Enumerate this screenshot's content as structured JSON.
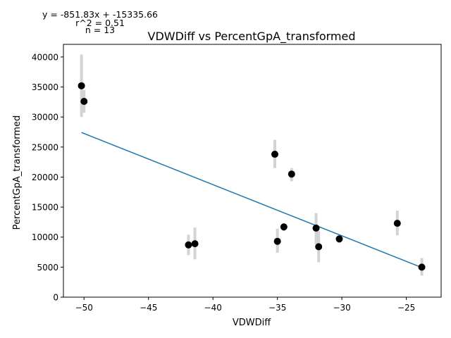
{
  "chart_data": {
    "type": "scatter",
    "title": "VDWDiff vs PercentGpA_transformed",
    "xlabel": "VDWDiff",
    "ylabel": "PercentGpA_transformed",
    "xlim": [
      -51.6,
      -22.3
    ],
    "ylim": [
      0,
      42100
    ],
    "xticks": [
      -50,
      -45,
      -40,
      -35,
      -30,
      -25
    ],
    "xtick_labels": [
      "−50",
      "−45",
      "−40",
      "−35",
      "−30",
      "−25"
    ],
    "yticks": [
      0,
      5000,
      10000,
      15000,
      20000,
      25000,
      30000,
      35000,
      40000
    ],
    "ytick_labels": [
      "0",
      "5000",
      "10000",
      "15000",
      "20000",
      "25000",
      "30000",
      "35000",
      "40000"
    ],
    "annotations": [
      "y = -851.83x + -15335.66",
      "r^2 = 0.51",
      "n = 13"
    ],
    "fit_line": {
      "slope": -851.83,
      "intercept": -15335.66,
      "x_range": [
        -50.2,
        -23.8
      ],
      "color": "#1f77b4"
    },
    "points": [
      {
        "x": -50.2,
        "y": 35200,
        "err_low": 30000,
        "err_high": 40400
      },
      {
        "x": -50.0,
        "y": 32600,
        "err_low": 30700,
        "err_high": 34500
      },
      {
        "x": -41.9,
        "y": 8700,
        "err_low": 7000,
        "err_high": 10400
      },
      {
        "x": -41.4,
        "y": 8900,
        "err_low": 6300,
        "err_high": 11600
      },
      {
        "x": -35.2,
        "y": 23800,
        "err_low": 21500,
        "err_high": 26200
      },
      {
        "x": -35.0,
        "y": 9300,
        "err_low": 7400,
        "err_high": 11400
      },
      {
        "x": -34.5,
        "y": 11700,
        "err_low": 11000,
        "err_high": 12300
      },
      {
        "x": -33.9,
        "y": 20500,
        "err_low": 19300,
        "err_high": 21500
      },
      {
        "x": -32.0,
        "y": 11500,
        "err_low": 8800,
        "err_high": 14000
      },
      {
        "x": -31.8,
        "y": 8400,
        "err_low": 5800,
        "err_high": 11000
      },
      {
        "x": -30.2,
        "y": 9700,
        "err_low": 9000,
        "err_high": 10200
      },
      {
        "x": -25.7,
        "y": 12300,
        "err_low": 10300,
        "err_high": 14400
      },
      {
        "x": -23.8,
        "y": 5000,
        "err_low": 3600,
        "err_high": 6500
      }
    ],
    "marker_color": "#000000",
    "errorbar_color": "#d3d3d3",
    "grid": false
  }
}
